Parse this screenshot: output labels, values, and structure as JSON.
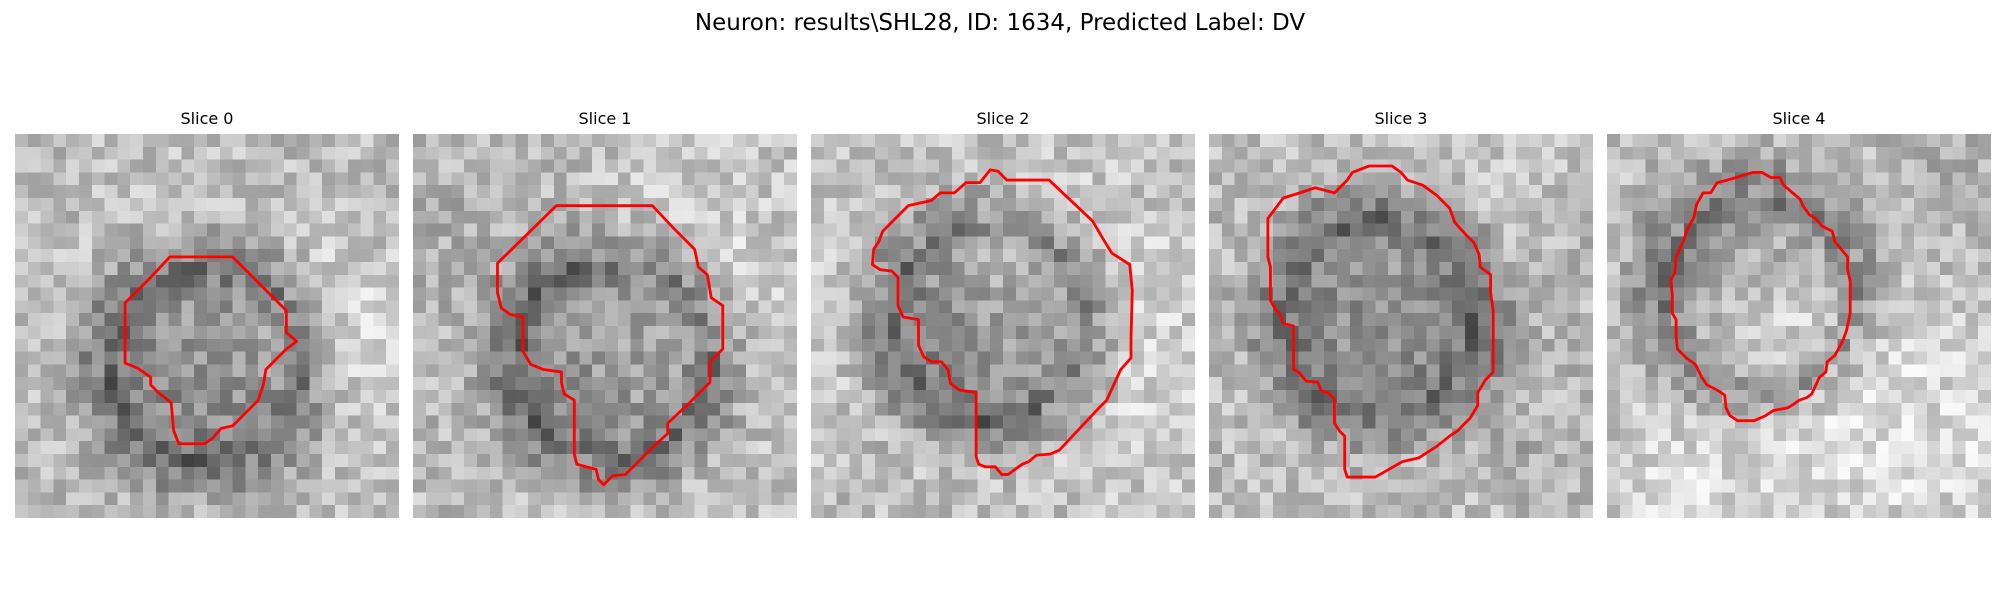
{
  "figure": {
    "title": "Neuron: results\\SHL28, ID: 1634, Predicted Label: DV",
    "outline_color": "#ff0000"
  },
  "slices": [
    {
      "title": "Slice 0"
    },
    {
      "title": "Slice 1"
    },
    {
      "title": "Slice 2"
    },
    {
      "title": "Slice 3"
    },
    {
      "title": "Slice 4"
    }
  ]
}
